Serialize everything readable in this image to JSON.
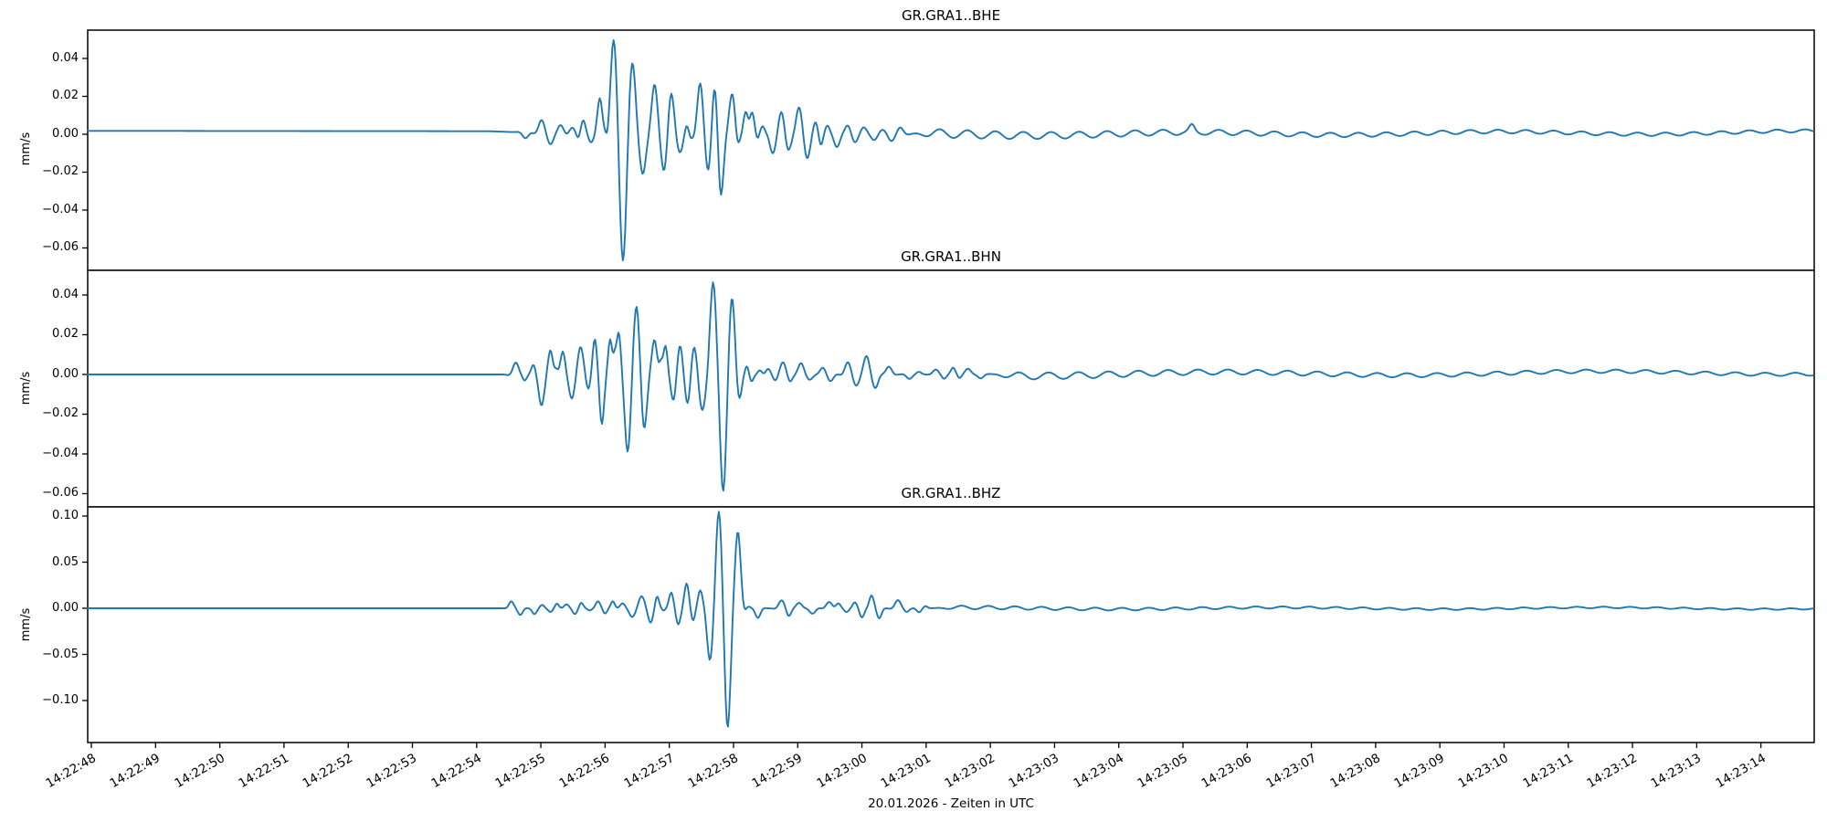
{
  "figure": {
    "background": "#ffffff",
    "axis_color": "#000000",
    "text_color": "#000000",
    "trace_color": "#1f77b4"
  },
  "x_axis": {
    "label": "20.01.2026 - Zeiten in UTC",
    "xlim_s": [
      47.943,
      74.83
    ],
    "tick_start_s": 48,
    "tick_step_s": 1,
    "tick_labels": [
      "14:22:48",
      "14:22:49",
      "14:22:50",
      "14:22:51",
      "14:22:52",
      "14:22:53",
      "14:22:54",
      "14:22:55",
      "14:22:56",
      "14:22:57",
      "14:22:58",
      "14:22:59",
      "14:23:00",
      "14:23:01",
      "14:23:02",
      "14:23:03",
      "14:23:04",
      "14:23:05",
      "14:23:06",
      "14:23:07",
      "14:23:08",
      "14:23:09",
      "14:23:10",
      "14:23:11",
      "14:23:12",
      "14:23:13",
      "14:23:14"
    ]
  },
  "chart_data": [
    {
      "type": "line",
      "id": "bhe",
      "title": "GR.GRA1..BHE",
      "ylabel": "mm/s",
      "color": "#1f77b4",
      "xlim": [
        47.943,
        74.83
      ],
      "ylim": [
        -0.07181,
        0.05494
      ],
      "yticks": [
        0.04,
        0.02,
        0.0,
        -0.02,
        -0.04,
        -0.06
      ],
      "peak_max_mm_s": 0.048,
      "peak_min_mm_s": -0.066,
      "onset_time_s": 54.6,
      "waveform": {
        "packet_sigma_s": 0.085,
        "packet_freq_hz": 2.6,
        "baseline": [
          [
            47.9,
            0.0018
          ],
          [
            54.2,
            0.0016
          ],
          [
            55.5,
            0.0
          ],
          [
            60.0,
            0.0
          ],
          [
            67.0,
            0.0004
          ],
          [
            74.9,
            0.001
          ]
        ],
        "packets": [
          [
            54.76,
            -0.003
          ],
          [
            55.01,
            0.0067
          ],
          [
            55.15,
            -0.0053
          ],
          [
            55.31,
            0.0045
          ],
          [
            55.49,
            0.0035
          ],
          [
            55.58,
            -0.002,
            0.045
          ],
          [
            55.66,
            0.0074,
            0.06
          ],
          [
            55.78,
            -0.004,
            0.06
          ],
          [
            55.92,
            0.0195,
            0.07
          ],
          [
            56.0,
            0.005,
            0.04
          ],
          [
            56.13,
            0.0445,
            0.1
          ],
          [
            56.28,
            -0.0615,
            0.1
          ],
          [
            56.43,
            0.032,
            0.09
          ],
          [
            56.59,
            -0.0195
          ],
          [
            56.77,
            0.0255
          ],
          [
            56.92,
            -0.0173
          ],
          [
            57.03,
            0.0202
          ],
          [
            57.17,
            -0.0087
          ],
          [
            57.27,
            0.0043,
            0.05
          ],
          [
            57.33,
            -0.0014,
            0.04
          ],
          [
            57.48,
            0.026
          ],
          [
            57.61,
            -0.0169
          ],
          [
            57.71,
            0.0241
          ],
          [
            57.8,
            -0.032,
            0.08
          ],
          [
            57.98,
            0.0212
          ],
          [
            58.06,
            -0.0048,
            0.05
          ],
          [
            58.19,
            0.012,
            0.06
          ],
          [
            58.29,
            0.0116,
            0.06
          ],
          [
            58.37,
            -0.0024,
            0.04
          ],
          [
            58.45,
            0.004,
            0.05
          ],
          [
            58.61,
            -0.0096
          ],
          [
            58.75,
            0.0111
          ],
          [
            58.85,
            -0.0077
          ],
          [
            59.02,
            0.0135
          ],
          [
            59.15,
            -0.012
          ],
          [
            59.28,
            0.0058,
            0.06
          ],
          [
            59.36,
            -0.0058,
            0.05
          ],
          [
            59.46,
            0.0043,
            0.06
          ],
          [
            59.61,
            -0.0067
          ],
          [
            59.78,
            0.0043
          ],
          [
            59.89,
            -0.0039
          ],
          [
            60.03,
            0.0034
          ],
          [
            60.19,
            -0.0029
          ],
          [
            60.32,
            0.002
          ],
          [
            60.46,
            -0.0034
          ],
          [
            60.6,
            0.0034
          ],
          [
            65.14,
            0.003,
            0.07
          ]
        ],
        "tail": {
          "start_s": 60.7,
          "amp_start": 0.0024,
          "amp_end": 0.0007,
          "tau_s": 5,
          "freq_hz": 2.3,
          "phase": 0.5,
          "und_amp": 0.0008,
          "und_freq_hz": 0.21,
          "und_phase": 2.0
        }
      }
    },
    {
      "type": "line",
      "id": "bhn",
      "title": "GR.GRA1..BHN",
      "ylabel": "mm/s",
      "color": "#1f77b4",
      "xlim": [
        47.943,
        74.83
      ],
      "ylim": [
        -0.06667,
        0.05241
      ],
      "yticks": [
        0.04,
        0.02,
        0.0,
        -0.02,
        -0.04,
        -0.06
      ],
      "peak_max_mm_s": 0.047,
      "peak_min_mm_s": -0.06,
      "onset_time_s": 54.5,
      "waveform": {
        "packet_sigma_s": 0.085,
        "packet_freq_hz": 2.6,
        "baseline": [
          [
            47.9,
            0.0
          ],
          [
            60.0,
            0.0
          ],
          [
            70.0,
            0.0006
          ],
          [
            74.9,
            0.001
          ]
        ],
        "packets": [
          [
            54.61,
            0.006
          ],
          [
            54.75,
            -0.0028,
            0.05
          ],
          [
            54.88,
            0.004,
            0.05
          ],
          [
            55.01,
            -0.0156
          ],
          [
            55.15,
            0.0115,
            0.06
          ],
          [
            55.24,
            0.003,
            0.04
          ],
          [
            55.34,
            0.011,
            0.06
          ],
          [
            55.48,
            -0.0115
          ],
          [
            55.62,
            0.0133
          ],
          [
            55.74,
            -0.0064,
            0.06
          ],
          [
            55.84,
            0.0175,
            0.06
          ],
          [
            55.95,
            -0.0248,
            0.06
          ],
          [
            56.08,
            0.0175,
            0.05
          ],
          [
            56.15,
            0.0087,
            0.035
          ],
          [
            56.21,
            0.0189,
            0.05
          ],
          [
            56.35,
            -0.037,
            0.09
          ],
          [
            56.49,
            0.031,
            0.09
          ],
          [
            56.61,
            -0.025,
            0.08
          ],
          [
            56.77,
            0.017,
            0.07
          ],
          [
            56.87,
            0.0069,
            0.04
          ],
          [
            56.94,
            0.0138,
            0.05
          ],
          [
            57.07,
            -0.013
          ],
          [
            57.16,
            0.0138
          ],
          [
            57.29,
            -0.0138
          ],
          [
            57.38,
            0.0129
          ],
          [
            57.51,
            -0.0161
          ],
          [
            57.68,
            0.044,
            0.09
          ],
          [
            57.84,
            -0.056,
            0.09
          ],
          [
            57.98,
            0.035,
            0.08
          ],
          [
            58.09,
            -0.0106,
            0.07
          ],
          [
            58.21,
            0.004,
            0.05
          ],
          [
            58.28,
            -0.0037,
            0.05
          ],
          [
            58.41,
            0.0021,
            0.05
          ],
          [
            58.54,
            0.0028,
            0.06
          ],
          [
            58.65,
            -0.0026,
            0.06
          ],
          [
            58.77,
            0.0061
          ],
          [
            58.88,
            -0.0031,
            0.06
          ],
          [
            59.05,
            0.0056
          ],
          [
            59.19,
            -0.0024
          ],
          [
            59.39,
            0.0032
          ],
          [
            59.51,
            -0.0032
          ],
          [
            59.78,
            0.0059
          ],
          [
            59.91,
            -0.0051
          ],
          [
            60.07,
            0.0089
          ],
          [
            60.21,
            -0.0065
          ],
          [
            60.42,
            0.0039
          ],
          [
            60.74,
            -0.0023
          ],
          [
            60.89,
            0.0012,
            0.06
          ],
          [
            61.15,
            0.0024
          ],
          [
            61.28,
            -0.0021,
            0.06
          ],
          [
            61.42,
            0.0033,
            0.06
          ],
          [
            61.52,
            -0.0017,
            0.05
          ],
          [
            61.65,
            0.0028
          ],
          [
            61.85,
            -0.0021
          ]
        ],
        "tail": {
          "start_s": 61.95,
          "amp_start": 0.0019,
          "amp_end": 0.0007,
          "tau_s": 5,
          "freq_hz": 2.15,
          "phase": 1.2,
          "und_amp": 0.0009,
          "und_freq_hz": 0.17,
          "und_phase": 4.0
        }
      }
    },
    {
      "type": "line",
      "id": "bhz",
      "title": "GR.GRA1..BHZ",
      "ylabel": "mm/s",
      "color": "#1f77b4",
      "xlim": [
        47.943,
        74.83
      ],
      "ylim": [
        -0.14554,
        0.1099
      ],
      "yticks": [
        0.1,
        0.05,
        0.0,
        -0.05,
        -0.1
      ],
      "peak_max_mm_s": 0.105,
      "peak_min_mm_s": -0.133,
      "onset_time_s": 54.5,
      "waveform": {
        "packet_sigma_s": 0.085,
        "packet_freq_hz": 2.55,
        "baseline": [
          [
            47.9,
            0.0
          ],
          [
            74.9,
            0.0
          ]
        ],
        "packets": [
          [
            54.54,
            0.0076,
            0.06
          ],
          [
            54.68,
            -0.0073,
            0.06
          ],
          [
            54.9,
            -0.0063,
            0.06
          ],
          [
            55.02,
            0.0036,
            0.05
          ],
          [
            55.15,
            -0.004,
            0.06
          ],
          [
            55.25,
            0.005,
            0.05
          ],
          [
            55.4,
            0.0043,
            0.06
          ],
          [
            55.53,
            -0.0063,
            0.06
          ],
          [
            55.63,
            0.006,
            0.05
          ],
          [
            55.76,
            -0.0023,
            0.05
          ],
          [
            55.89,
            0.0076,
            0.06
          ],
          [
            56.0,
            -0.0056,
            0.05
          ],
          [
            56.12,
            0.0076,
            0.05
          ],
          [
            56.27,
            0.005,
            0.06
          ],
          [
            56.42,
            -0.009
          ],
          [
            56.57,
            0.0126
          ],
          [
            56.71,
            -0.015,
            0.07
          ],
          [
            56.81,
            0.0126,
            0.05
          ],
          [
            56.91,
            -0.0023,
            0.04
          ],
          [
            57.03,
            0.0169,
            0.06
          ],
          [
            57.14,
            -0.0172,
            0.06
          ],
          [
            57.27,
            0.0268,
            0.06
          ],
          [
            57.37,
            -0.0129,
            0.05
          ],
          [
            57.48,
            0.0182,
            0.06
          ],
          [
            57.63,
            -0.052,
            0.08
          ],
          [
            57.77,
            0.098,
            0.085
          ],
          [
            57.91,
            -0.124,
            0.085
          ],
          [
            58.07,
            0.08,
            0.08
          ],
          [
            58.22,
            0.003,
            0.05
          ],
          [
            58.38,
            -0.0105,
            0.07
          ],
          [
            58.75,
            0.0086
          ],
          [
            58.86,
            -0.0079,
            0.06
          ],
          [
            59.02,
            0.0059
          ],
          [
            59.23,
            -0.0059
          ],
          [
            59.49,
            0.0069
          ],
          [
            59.63,
            0.0056,
            0.06
          ],
          [
            59.76,
            -0.004,
            0.06
          ],
          [
            59.89,
            0.0063,
            0.06
          ],
          [
            60.0,
            -0.0099,
            0.06
          ],
          [
            60.15,
            0.0139,
            0.06
          ],
          [
            60.27,
            -0.0109,
            0.06
          ],
          [
            60.56,
            0.0089
          ],
          [
            60.7,
            -0.0036,
            0.06
          ],
          [
            60.89,
            -0.0043,
            0.06
          ],
          [
            60.99,
            0.0023,
            0.05
          ]
        ],
        "tail": {
          "start_s": 61.05,
          "amp_start": 0.0021,
          "amp_end": 0.0007,
          "tau_s": 4.5,
          "freq_hz": 2.4,
          "phase": 0.3,
          "und_amp": 0.0009,
          "und_freq_hz": 0.2,
          "und_phase": 1.0
        }
      }
    }
  ]
}
